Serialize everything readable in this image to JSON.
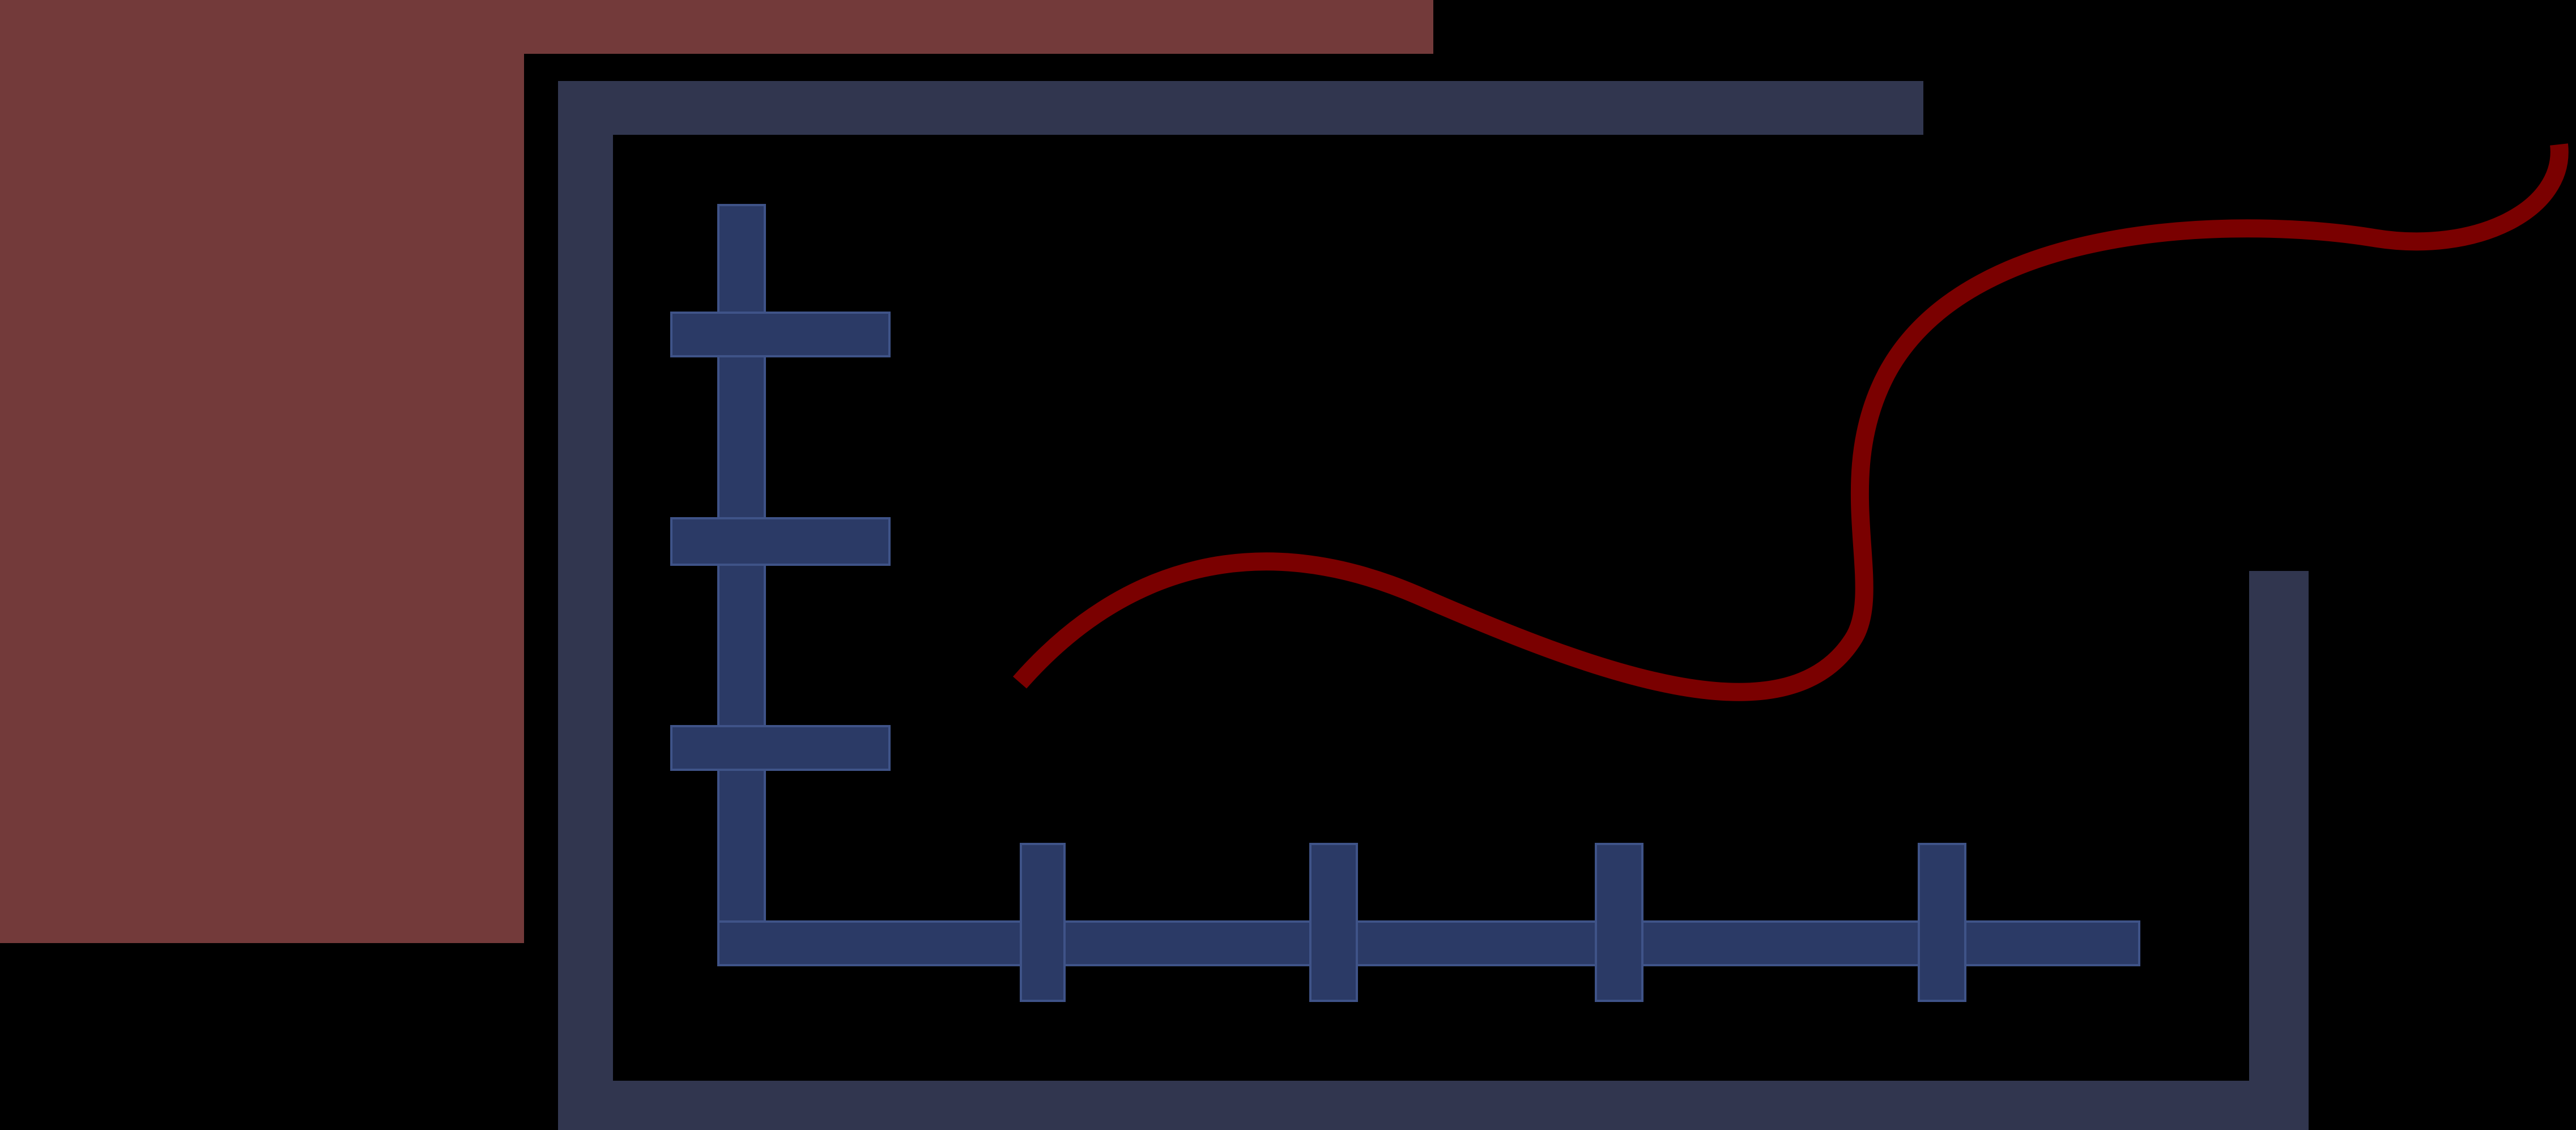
{
  "colors": {
    "background": "#000000",
    "block": "#733a3a",
    "frame": "#31364f",
    "axes": "#2b3a66",
    "axes_outline": "#3f5388",
    "curve": "#7a0000"
  },
  "icons": {
    "illustration": "line-chart-icon",
    "decorative_block": "red-block-shape",
    "frame": "open-frame-shape",
    "axes": "chart-axes-icon",
    "curve": "trend-curve-icon"
  }
}
